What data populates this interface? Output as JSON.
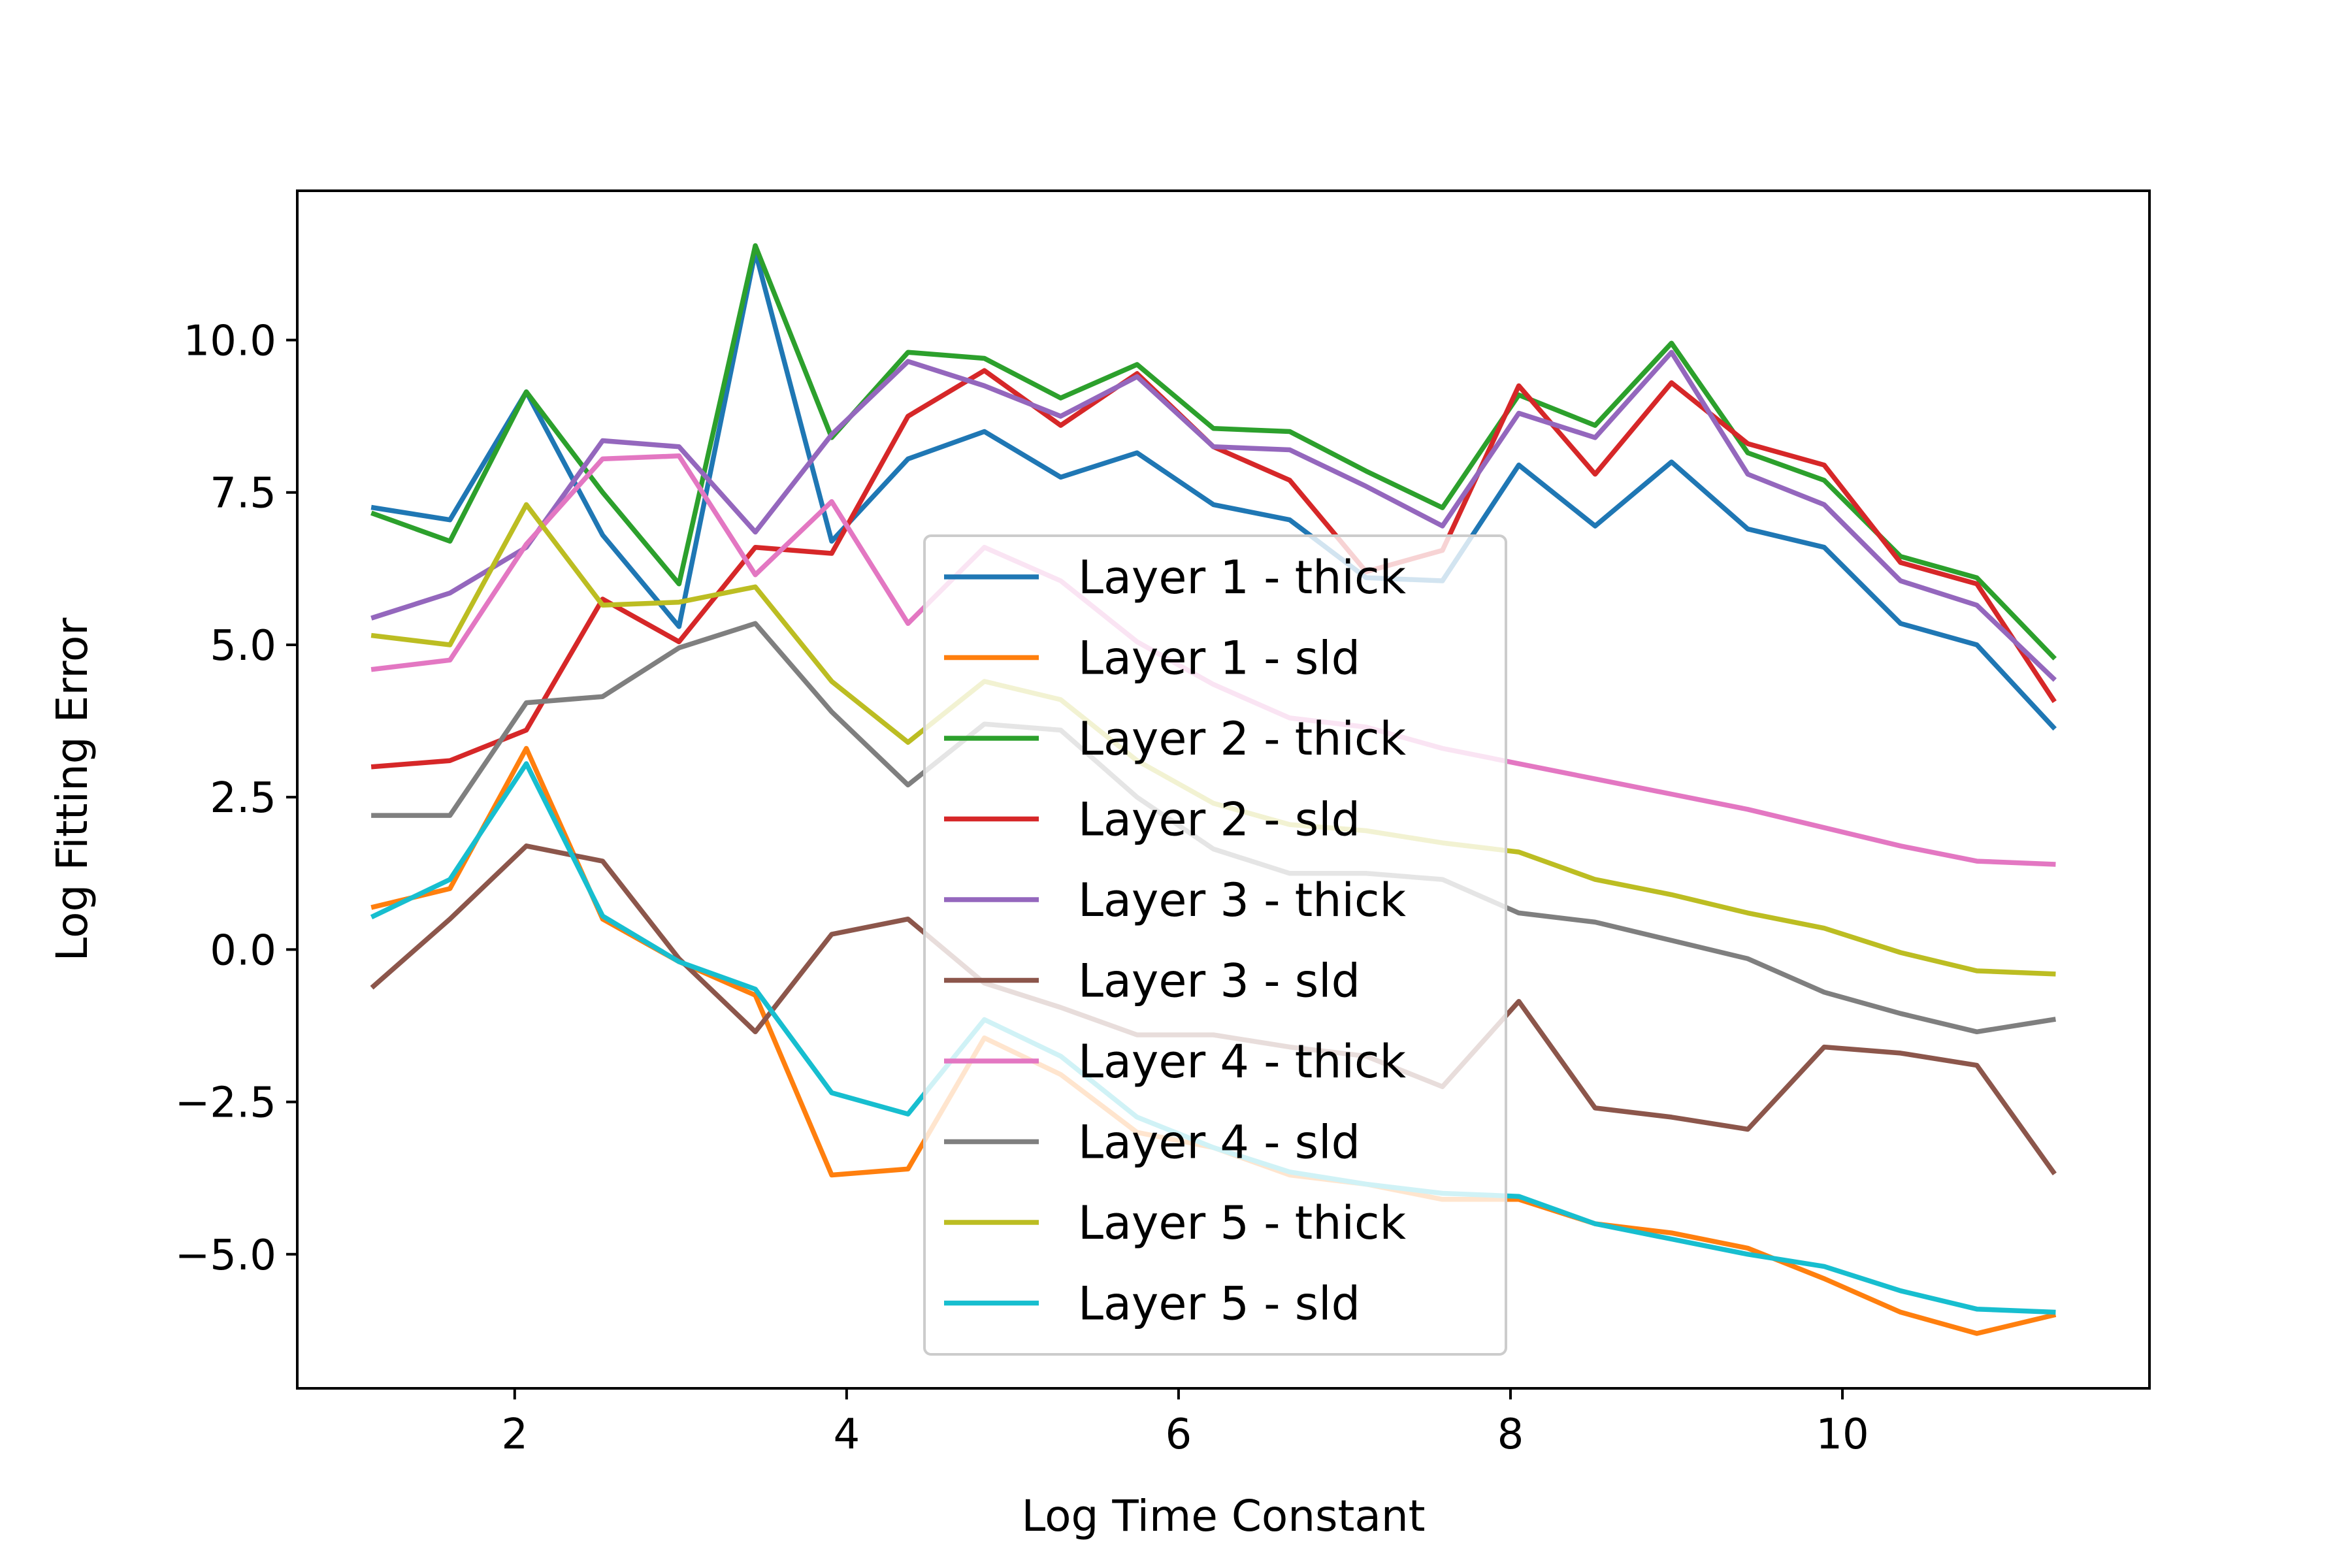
{
  "chart_data": {
    "type": "line",
    "title": "",
    "xlabel": "Log Time Constant",
    "ylabel": "Log Fitting Error",
    "xlim": [
      0.69,
      11.85
    ],
    "ylim": [
      -7.2,
      12.45
    ],
    "xticks": [
      2,
      4,
      6,
      8,
      10
    ],
    "yticks": [
      -5.0,
      -2.5,
      0.0,
      2.5,
      5.0,
      7.5,
      10.0
    ],
    "xtick_labels": [
      "2",
      "4",
      "6",
      "8",
      "10"
    ],
    "ytick_labels": [
      "−5.0",
      "−2.5",
      "0.0",
      "2.5",
      "5.0",
      "7.5",
      "10.0"
    ],
    "grid": false,
    "legend_position": "center",
    "x": [
      1.15,
      1.61,
      2.07,
      2.53,
      2.99,
      3.45,
      3.91,
      4.37,
      4.83,
      5.29,
      5.75,
      6.21,
      6.67,
      7.13,
      7.59,
      8.05,
      8.51,
      8.97,
      9.43,
      9.89,
      10.35,
      10.81,
      11.27
    ],
    "series": [
      {
        "name": "Layer 1 - thick",
        "color": "#1f77b4",
        "values": [
          7.25,
          7.05,
          9.15,
          6.8,
          5.3,
          11.45,
          6.7,
          8.05,
          8.5,
          7.75,
          8.15,
          7.3,
          7.05,
          6.1,
          6.05,
          7.95,
          6.95,
          8.0,
          6.9,
          6.6,
          5.35,
          5.0,
          3.65
        ]
      },
      {
        "name": "Layer 1 - sld",
        "color": "#ff7f0e",
        "values": [
          0.7,
          1.0,
          3.3,
          0.5,
          -0.2,
          -0.75,
          -3.7,
          -3.6,
          -1.45,
          -2.05,
          -3.0,
          -3.25,
          -3.7,
          -3.85,
          -4.1,
          -4.1,
          -4.5,
          -4.65,
          -4.9,
          -5.4,
          -5.95,
          -6.3,
          -6.0
        ]
      },
      {
        "name": "Layer 2 - thick",
        "color": "#2ca02c",
        "values": [
          7.15,
          6.7,
          9.15,
          7.5,
          6.0,
          11.55,
          8.4,
          9.8,
          9.7,
          9.05,
          9.6,
          8.55,
          8.5,
          7.85,
          7.25,
          9.1,
          8.6,
          9.95,
          8.15,
          7.7,
          6.45,
          6.1,
          4.8
        ]
      },
      {
        "name": "Layer 2 - sld",
        "color": "#d62728",
        "values": [
          3.0,
          3.1,
          3.6,
          5.75,
          5.05,
          6.6,
          6.5,
          8.75,
          9.5,
          8.6,
          9.45,
          8.25,
          7.7,
          6.2,
          6.55,
          9.25,
          7.8,
          9.3,
          8.3,
          7.95,
          6.35,
          6.0,
          4.1
        ]
      },
      {
        "name": "Layer 3 - thick",
        "color": "#9467bd",
        "values": [
          5.45,
          5.85,
          6.6,
          8.35,
          8.25,
          6.85,
          8.45,
          9.65,
          9.25,
          8.75,
          9.4,
          8.25,
          8.2,
          7.6,
          6.95,
          8.8,
          8.4,
          9.8,
          7.8,
          7.3,
          6.05,
          5.65,
          4.45
        ]
      },
      {
        "name": "Layer 3 - sld",
        "color": "#8c564b",
        "values": [
          -0.6,
          0.5,
          1.7,
          1.45,
          -0.15,
          -1.35,
          0.25,
          0.5,
          -0.55,
          -0.95,
          -1.4,
          -1.4,
          -1.6,
          -1.75,
          -2.25,
          -0.85,
          -2.6,
          -2.75,
          -2.95,
          -1.6,
          -1.7,
          -1.9,
          -3.65
        ]
      },
      {
        "name": "Layer 4 - thick",
        "color": "#e377c2",
        "values": [
          4.6,
          4.75,
          6.65,
          8.05,
          8.1,
          6.15,
          7.35,
          5.35,
          6.6,
          6.05,
          5.05,
          4.35,
          3.8,
          3.65,
          3.3,
          3.05,
          2.8,
          2.55,
          2.3,
          2.0,
          1.7,
          1.45,
          1.4
        ]
      },
      {
        "name": "Layer 4 - sld",
        "color": "#7f7f7f",
        "values": [
          2.2,
          2.2,
          4.05,
          4.15,
          4.95,
          5.35,
          3.9,
          2.7,
          3.7,
          3.6,
          2.5,
          1.65,
          1.25,
          1.25,
          1.15,
          0.6,
          0.45,
          0.15,
          -0.15,
          -0.7,
          -1.05,
          -1.35,
          -1.15
        ]
      },
      {
        "name": "Layer 5 - thick",
        "color": "#bcbd22",
        "values": [
          5.15,
          5.0,
          7.3,
          5.65,
          5.7,
          5.95,
          4.4,
          3.4,
          4.4,
          4.1,
          3.1,
          2.4,
          2.05,
          1.95,
          1.75,
          1.6,
          1.15,
          0.9,
          0.6,
          0.35,
          -0.05,
          -0.35,
          -0.4
        ]
      },
      {
        "name": "Layer 5 - sld",
        "color": "#17becf",
        "values": [
          0.55,
          1.15,
          3.05,
          0.55,
          -0.2,
          -0.65,
          -2.35,
          -2.7,
          -1.15,
          -1.75,
          -2.75,
          -3.25,
          -3.65,
          -3.85,
          -4.0,
          -4.05,
          -4.5,
          -4.75,
          -5.0,
          -5.2,
          -5.6,
          -5.9,
          -5.95
        ]
      }
    ]
  }
}
